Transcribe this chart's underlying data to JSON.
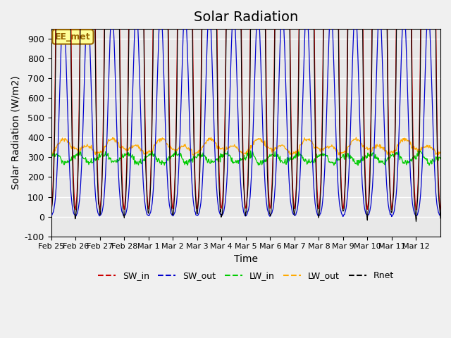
{
  "title": "Solar Radiation",
  "xlabel": "Time",
  "ylabel": "Solar Radiation (W/m2)",
  "ylim": [
    -100,
    950
  ],
  "yticks": [
    -100,
    0,
    100,
    200,
    300,
    400,
    500,
    600,
    700,
    800,
    900
  ],
  "x_labels": [
    "Feb 25",
    "Feb 26",
    "Feb 27",
    "Feb 28",
    "Mar 1",
    "Mar 2",
    "Mar 3",
    "Mar 4",
    "Mar 5",
    "Mar 6",
    "Mar 7",
    "Mar 8",
    "Mar 9",
    "Mar 10",
    "Mar 11",
    "Mar 12"
  ],
  "colors": {
    "SW_in": "#cc0000",
    "SW_out": "#0000cc",
    "LW_in": "#00cc00",
    "LW_out": "#ffaa00",
    "Rnet": "#000000"
  },
  "annotation_text": "EE_met",
  "annotation_bg": "#ffff99",
  "annotation_border": "#996600",
  "plot_bg": "#e8e8e8",
  "fig_bg": "#f0f0f0",
  "n_days": 16,
  "points_per_day": 48,
  "title_fontsize": 14
}
